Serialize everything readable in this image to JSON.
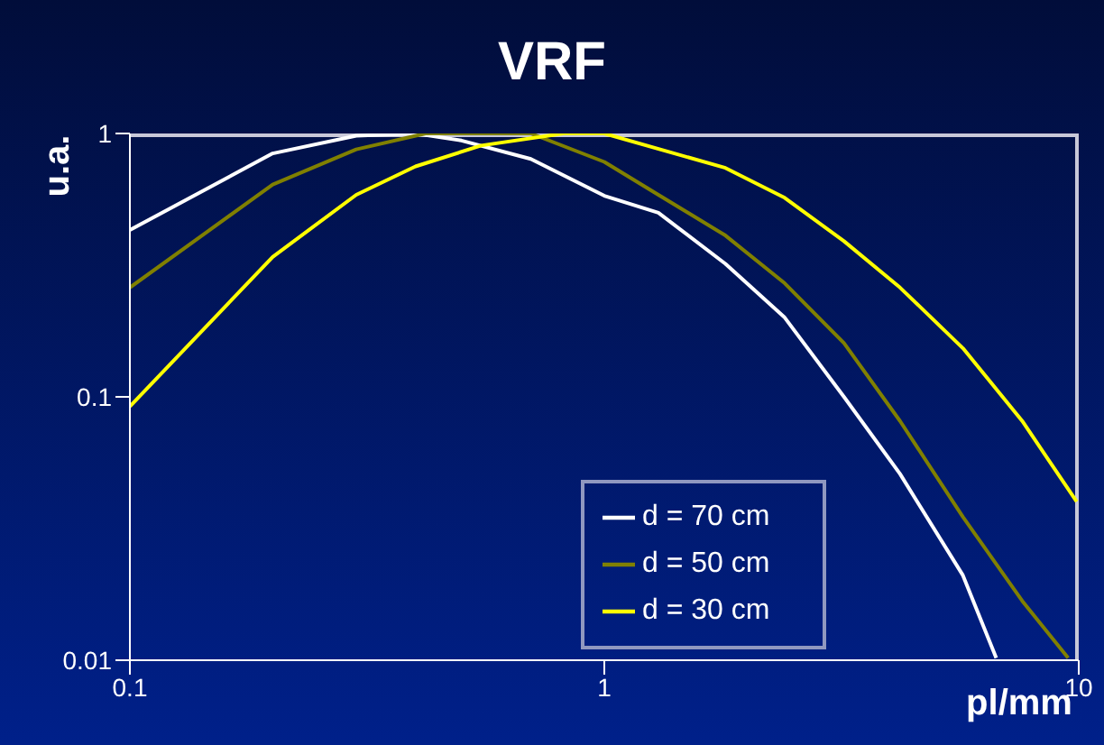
{
  "chart_data": {
    "type": "line",
    "title": "VRF",
    "xlabel": "pl/mm",
    "ylabel": "u.a.",
    "log": "xy",
    "xlim": [
      0.1,
      10
    ],
    "xticks": [
      0.1,
      1,
      10
    ],
    "ylim": [
      0.01,
      1
    ],
    "yticks": [
      0.01,
      0.1,
      1
    ],
    "grid": false,
    "legend": "bottom right",
    "marker": "none",
    "line_style": "solid",
    "series": [
      {
        "name": "d = 70 cm",
        "color": "#ffffff",
        "x": [
          0.1,
          0.2,
          0.3,
          0.4,
          0.5,
          0.7,
          1,
          1.3,
          1.8,
          2.4,
          3.2,
          4.2,
          5.7,
          6.7
        ],
        "values": [
          0.43,
          0.84,
          0.98,
          1,
          0.94,
          0.8,
          0.58,
          0.5,
          0.32,
          0.2,
          0.1,
          0.051,
          0.021,
          0.0102
        ]
      },
      {
        "name": "d = 50 cm",
        "color": "#808000",
        "x": [
          0.1,
          0.2,
          0.3,
          0.42,
          0.7,
          1,
          1.3,
          1.8,
          2.4,
          3.2,
          4.2,
          5.7,
          7.6,
          9.5
        ],
        "values": [
          0.26,
          0.64,
          0.87,
          1,
          1,
          0.78,
          0.585,
          0.41,
          0.27,
          0.16,
          0.081,
          0.035,
          0.0168,
          0.0102
        ]
      },
      {
        "name": "d = 30 cm",
        "color": "#ffff00",
        "x": [
          0.1,
          0.2,
          0.3,
          0.4,
          0.55,
          0.82,
          1,
          1.8,
          2.4,
          3.2,
          4.2,
          5.7,
          7.6,
          9.9
        ],
        "values": [
          0.092,
          0.34,
          0.585,
          0.75,
          0.9,
          1,
          1,
          0.74,
          0.57,
          0.39,
          0.26,
          0.153,
          0.081,
          0.04
        ]
      }
    ]
  }
}
